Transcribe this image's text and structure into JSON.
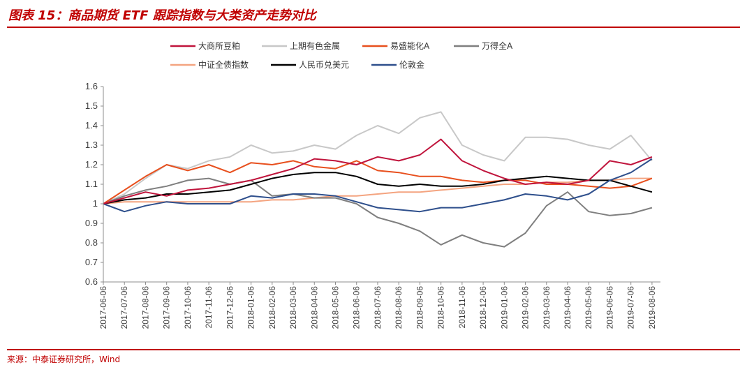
{
  "header": {
    "title": "图表 15：商品期货 ETF 跟踪指数与大类资产走势对比"
  },
  "footer": {
    "source": "来源：中泰证券研究所，Wind"
  },
  "chart_data": {
    "type": "line",
    "ylim": [
      0.6,
      1.6
    ],
    "yticks": [
      "0.6",
      "0.7",
      "0.8",
      "0.9",
      "1",
      "1.1",
      "1.2",
      "1.3",
      "1.4",
      "1.5",
      "1.6"
    ],
    "x": [
      "2017-06-06",
      "2017-07-06",
      "2017-08-06",
      "2017-09-06",
      "2017-10-06",
      "2017-11-06",
      "2017-12-06",
      "2018-01-06",
      "2018-02-06",
      "2018-03-06",
      "2018-04-06",
      "2018-05-06",
      "2018-06-06",
      "2018-07-06",
      "2018-08-06",
      "2018-09-06",
      "2018-10-06",
      "2018-11-06",
      "2018-12-06",
      "2019-01-06",
      "2019-02-06",
      "2019-03-06",
      "2019-04-06",
      "2019-05-06",
      "2019-06-06",
      "2019-07-06",
      "2019-08-06"
    ],
    "series": [
      {
        "name": "大商所豆粕",
        "color": "#c0143c",
        "values": [
          1.0,
          1.03,
          1.06,
          1.04,
          1.07,
          1.08,
          1.1,
          1.12,
          1.15,
          1.18,
          1.23,
          1.22,
          1.2,
          1.24,
          1.22,
          1.25,
          1.33,
          1.22,
          1.17,
          1.13,
          1.1,
          1.11,
          1.1,
          1.12,
          1.22,
          1.2,
          1.24
        ]
      },
      {
        "name": "上期有色金属",
        "color": "#c8c8c8",
        "values": [
          1.0,
          1.05,
          1.13,
          1.2,
          1.18,
          1.22,
          1.24,
          1.3,
          1.26,
          1.27,
          1.3,
          1.28,
          1.35,
          1.4,
          1.36,
          1.44,
          1.47,
          1.3,
          1.25,
          1.22,
          1.34,
          1.34,
          1.33,
          1.3,
          1.28,
          1.35,
          1.22
        ]
      },
      {
        "name": "易盛能化A",
        "color": "#e8501e",
        "values": [
          1.0,
          1.07,
          1.14,
          1.2,
          1.17,
          1.2,
          1.16,
          1.21,
          1.2,
          1.22,
          1.19,
          1.18,
          1.22,
          1.17,
          1.16,
          1.14,
          1.14,
          1.12,
          1.11,
          1.12,
          1.12,
          1.1,
          1.1,
          1.09,
          1.08,
          1.09,
          1.13
        ]
      },
      {
        "name": "万得全A",
        "color": "#7f7f7f",
        "values": [
          1.0,
          1.04,
          1.07,
          1.09,
          1.12,
          1.13,
          1.1,
          1.12,
          1.04,
          1.05,
          1.03,
          1.03,
          1.0,
          0.93,
          0.9,
          0.86,
          0.79,
          0.84,
          0.8,
          0.78,
          0.85,
          0.99,
          1.06,
          0.96,
          0.94,
          0.95,
          0.98
        ]
      },
      {
        "name": "中证全债指数",
        "color": "#f4a480",
        "values": [
          1.0,
          1.01,
          1.01,
          1.01,
          1.01,
          1.01,
          1.01,
          1.01,
          1.02,
          1.02,
          1.03,
          1.04,
          1.04,
          1.05,
          1.06,
          1.06,
          1.07,
          1.08,
          1.09,
          1.1,
          1.1,
          1.11,
          1.11,
          1.12,
          1.12,
          1.13,
          1.13
        ]
      },
      {
        "name": "人民币兑美元",
        "color": "#000000",
        "values": [
          1.0,
          1.02,
          1.03,
          1.05,
          1.05,
          1.06,
          1.07,
          1.1,
          1.13,
          1.15,
          1.16,
          1.16,
          1.14,
          1.1,
          1.09,
          1.1,
          1.09,
          1.09,
          1.1,
          1.12,
          1.13,
          1.14,
          1.13,
          1.12,
          1.12,
          1.09,
          1.06
        ]
      },
      {
        "name": "伦敦金",
        "color": "#2e4f8c",
        "values": [
          1.0,
          0.96,
          0.99,
          1.01,
          1.0,
          1.0,
          1.0,
          1.04,
          1.03,
          1.05,
          1.05,
          1.04,
          1.01,
          0.98,
          0.97,
          0.96,
          0.98,
          0.98,
          1.0,
          1.02,
          1.05,
          1.04,
          1.02,
          1.05,
          1.12,
          1.16,
          1.23
        ]
      }
    ]
  }
}
